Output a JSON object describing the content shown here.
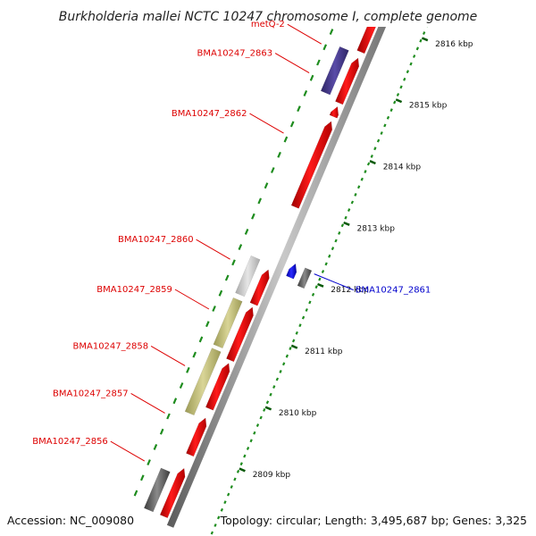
{
  "title": "Burkholderia mallei NCTC 10247 chromosome I, complete genome",
  "footer": {
    "accession": "Accession: NC_009080",
    "summary": "Topology: circular; Length: 3,495,687 bp; Genes: 3,325"
  },
  "ruler": [
    {
      "label": "2816 kbp",
      "kb": 2816
    },
    {
      "label": "2815 kbp",
      "kb": 2815
    },
    {
      "label": "2814 kbp",
      "kb": 2814
    },
    {
      "label": "2813 kbp",
      "kb": 2813
    },
    {
      "label": "2812 kbp",
      "kb": 2812
    },
    {
      "label": "2811 kbp",
      "kb": 2811
    },
    {
      "label": "2810 kbp",
      "kb": 2810
    },
    {
      "label": "2809 kbp",
      "kb": 2809
    }
  ],
  "gene_labels": [
    {
      "text": "metQ-2",
      "kb": 2815.33,
      "strand": "reverse",
      "color": "#dd0000"
    },
    {
      "text": "BMA10247_2863",
      "kb": 2814.86,
      "strand": "reverse",
      "color": "#dd0000"
    },
    {
      "text": "BMA10247_2862",
      "kb": 2813.88,
      "strand": "reverse",
      "color": "#dd0000"
    },
    {
      "text": "BMA10247_2860",
      "kb": 2811.83,
      "strand": "reverse",
      "color": "#dd0000"
    },
    {
      "text": "BMA10247_2859",
      "kb": 2811.02,
      "strand": "reverse",
      "color": "#dd0000"
    },
    {
      "text": "BMA10247_2858",
      "kb": 2810.1,
      "strand": "reverse",
      "color": "#dd0000"
    },
    {
      "text": "BMA10247_2857",
      "kb": 2809.33,
      "strand": "reverse",
      "color": "#dd0000"
    },
    {
      "text": "BMA10247_2856",
      "kb": 2808.55,
      "strand": "reverse",
      "color": "#dd0000"
    },
    {
      "text": "BMA10247_2861",
      "kb": 2812.12,
      "strand": "forward",
      "color": "#0000cc"
    }
  ],
  "colors": {
    "backbone": "#888888",
    "cds": "#ee0000",
    "ticks": "#1e8c1e",
    "reverse_label": "#dd0000",
    "forward_label": "#0000cc"
  }
}
